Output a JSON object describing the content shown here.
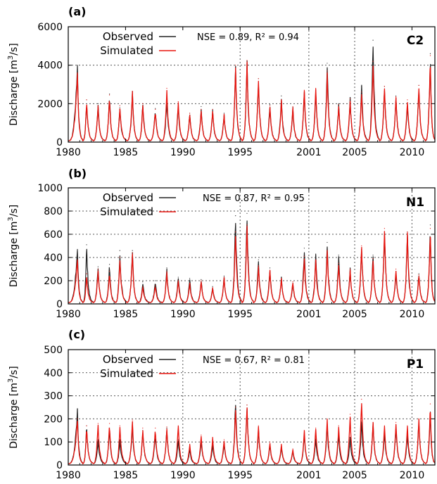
{
  "figure": {
    "ylabel_main": "Discharge [m",
    "ylabel_sup": "3",
    "ylabel_tail": "/s]",
    "x_tick_labels": [
      "1980",
      "1985",
      "1990",
      "1995",
      "2001",
      "2005",
      "2010"
    ],
    "colors": {
      "observed": "#222222",
      "simulated": "#e8150f",
      "grid": "#555555"
    }
  },
  "chart_data": [
    {
      "type": "line",
      "panel_label": "(a)",
      "station": "C2",
      "stats": "NSE = 0.89, R² = 0.94",
      "legend": [
        "Observed",
        "Simulated"
      ],
      "legend_position": "top-left",
      "ylabel": "Discharge [m3/s]",
      "xlim": [
        1980,
        2012
      ],
      "ylim": [
        0,
        6000
      ],
      "yticks": [
        0,
        2000,
        4000,
        6000
      ],
      "xticks": [
        1980,
        1985,
        1990,
        1995,
        2001,
        2005,
        2010
      ],
      "grid": "dotted at y ticks and at x = 1995, 2001, 2005",
      "series": [
        {
          "name": "Observed",
          "x": [
            1980.8,
            1981.6,
            1982.6,
            1983.6,
            1984.5,
            1985.6,
            1986.5,
            1987.6,
            1988.6,
            1989.6,
            1990.6,
            1991.6,
            1992.6,
            1993.6,
            1994.6,
            1995.6,
            1996.6,
            1997.6,
            1998.6,
            1999.6,
            2000.6,
            2001.6,
            2002.6,
            2003.6,
            2004.6,
            2005.6,
            2006.6,
            2007.6,
            2008.6,
            2009.6,
            2010.6,
            2011.6
          ],
          "values": [
            4000,
            2200,
            2000,
            2500,
            1800,
            2600,
            2000,
            1750,
            2300,
            1900,
            1500,
            1850,
            1700,
            1500,
            3900,
            4200,
            3300,
            1950,
            2400,
            1800,
            2600,
            2700,
            4100,
            2000,
            2300,
            2900,
            5300,
            2900,
            2400,
            2000,
            2950,
            4600
          ]
        },
        {
          "name": "Simulated",
          "x": [
            1980.8,
            1981.6,
            1982.6,
            1983.6,
            1984.5,
            1985.6,
            1986.5,
            1987.6,
            1988.6,
            1989.6,
            1990.6,
            1991.6,
            1992.6,
            1993.6,
            1994.6,
            1995.6,
            1996.6,
            1997.6,
            1998.6,
            1999.6,
            2000.6,
            2001.6,
            2002.6,
            2003.6,
            2004.6,
            2005.6,
            2006.6,
            2007.6,
            2008.6,
            2009.6,
            2010.6,
            2011.6
          ],
          "values": [
            3600,
            2200,
            1900,
            2450,
            1900,
            2650,
            2000,
            1700,
            2800,
            2100,
            1500,
            1700,
            1700,
            1450,
            4000,
            4250,
            3300,
            1900,
            2200,
            1850,
            2700,
            2800,
            3700,
            1950,
            2250,
            2600,
            4200,
            2900,
            2350,
            2200,
            2950,
            4500
          ]
        }
      ]
    },
    {
      "type": "line",
      "panel_label": "(b)",
      "station": "N1",
      "stats": "NSE = 0.87, R² = 0.95",
      "legend": [
        "Observed",
        "Simulated"
      ],
      "legend_position": "top-left",
      "ylabel": "Discharge [m3/s]",
      "xlim": [
        1980,
        2012
      ],
      "ylim": [
        0,
        1000
      ],
      "yticks": [
        0,
        200,
        400,
        600,
        800,
        1000
      ],
      "xticks": [
        1980,
        1985,
        1990,
        1995,
        2001,
        2005,
        2010
      ],
      "grid": "dotted at y ticks and at x = 1995, 2001, 2005, 2010",
      "series": [
        {
          "name": "Observed",
          "x": [
            1980.8,
            1981.6,
            1982.6,
            1983.6,
            1984.5,
            1985.6,
            1986.5,
            1987.6,
            1988.6,
            1989.6,
            1990.6,
            1991.6,
            1992.6,
            1993.6,
            1994.6,
            1995.6,
            1996.6,
            1997.6,
            1998.6,
            1999.6,
            2000.6,
            2001.6,
            2002.6,
            2003.6,
            2004.6,
            2005.6,
            2006.6,
            2007.6,
            2008.6,
            2009.6,
            2010.6,
            2011.6
          ],
          "values": [
            470,
            510,
            320,
            340,
            460,
            460,
            190,
            200,
            310,
            230,
            220,
            210,
            150,
            240,
            760,
            780,
            380,
            310,
            230,
            180,
            480,
            430,
            530,
            420,
            310,
            470,
            420,
            620,
            280,
            620,
            260,
            680
          ]
        },
        {
          "name": "Simulated",
          "x": [
            1980.8,
            1981.6,
            1982.6,
            1983.6,
            1984.5,
            1985.6,
            1986.5,
            1987.6,
            1988.6,
            1989.6,
            1990.6,
            1991.6,
            1992.6,
            1993.6,
            1994.6,
            1995.6,
            1996.6,
            1997.6,
            1998.6,
            1999.6,
            2000.6,
            2001.6,
            2002.6,
            2003.6,
            2004.6,
            2005.6,
            2006.6,
            2007.6,
            2008.6,
            2009.6,
            2010.6,
            2011.6
          ],
          "values": [
            380,
            260,
            300,
            280,
            400,
            440,
            150,
            160,
            280,
            200,
            180,
            200,
            140,
            230,
            620,
            680,
            330,
            290,
            220,
            190,
            410,
            380,
            460,
            350,
            300,
            500,
            390,
            650,
            300,
            620,
            250,
            650
          ]
        }
      ]
    },
    {
      "type": "line",
      "panel_label": "(c)",
      "station": "P1",
      "stats": "NSE = 0.67, R² = 0.81",
      "legend": [
        "Observed",
        "Simulated"
      ],
      "legend_position": "top-left",
      "ylabel": "Discharge [m3/s]",
      "xlim": [
        1980,
        2012
      ],
      "ylim": [
        0,
        500
      ],
      "yticks": [
        0,
        100,
        200,
        300,
        400,
        500
      ],
      "xticks": [
        1980,
        1985,
        1990,
        1995,
        2001,
        2005,
        2010
      ],
      "grid": "dotted at y ticks and at x = 1990, 1995, 2001, 2005, 2010",
      "series": [
        {
          "name": "Observed",
          "x": [
            1980.8,
            1981.6,
            1982.6,
            1983.6,
            1984.5,
            1985.6,
            1986.5,
            1987.6,
            1988.6,
            1989.6,
            1990.6,
            1991.6,
            1992.6,
            1993.6,
            1994.6,
            1995.6,
            1996.6,
            1997.6,
            1998.6,
            1999.6,
            2000.6,
            2001.6,
            2002.6,
            2003.6,
            2004.6,
            2005.6,
            2006.6,
            2007.6,
            2008.6,
            2009.6,
            2010.6,
            2011.6
          ],
          "values": [
            240,
            170,
            110,
            160,
            110,
            180,
            150,
            130,
            160,
            110,
            70,
            110,
            90,
            100,
            280,
            260,
            160,
            90,
            80,
            60,
            130,
            120,
            170,
            130,
            120,
            190,
            180,
            140,
            170,
            130,
            190,
            230
          ]
        },
        {
          "name": "Simulated",
          "x": [
            1980.8,
            1981.6,
            1982.6,
            1983.6,
            1984.5,
            1985.6,
            1986.5,
            1987.6,
            1988.6,
            1989.6,
            1990.6,
            1991.6,
            1992.6,
            1993.6,
            1994.6,
            1995.6,
            1996.6,
            1997.6,
            1998.6,
            1999.6,
            2000.6,
            2001.6,
            2002.6,
            2003.6,
            2004.6,
            2005.6,
            2006.6,
            2007.6,
            2008.6,
            2009.6,
            2010.6,
            2011.6
          ],
          "values": [
            200,
            170,
            180,
            180,
            170,
            195,
            160,
            160,
            165,
            170,
            90,
            130,
            120,
            110,
            250,
            260,
            170,
            100,
            90,
            70,
            150,
            160,
            200,
            170,
            220,
            285,
            185,
            170,
            185,
            170,
            200,
            265
          ]
        }
      ]
    }
  ]
}
